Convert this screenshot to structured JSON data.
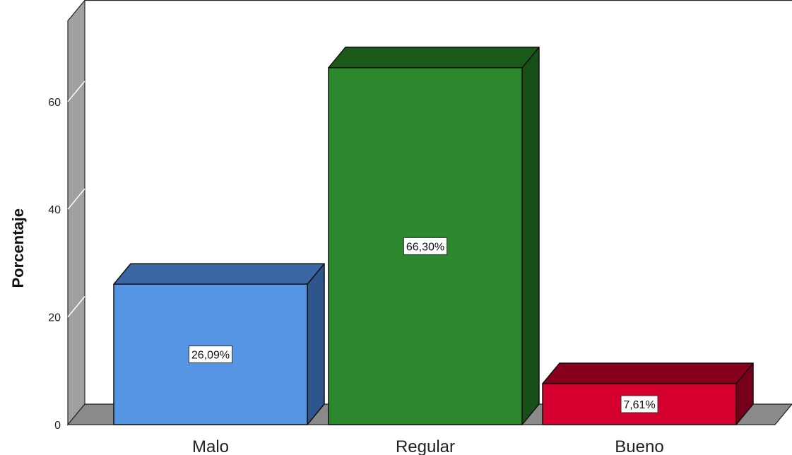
{
  "chart_data": {
    "type": "bar",
    "style": "3d",
    "title": "",
    "xlabel": "",
    "ylabel": "Porcentaje",
    "categories": [
      "Malo",
      "Regular",
      "Bueno"
    ],
    "values": [
      26.09,
      66.3,
      7.61
    ],
    "data_labels": [
      "26,09%",
      "66,30%",
      "7,61%"
    ],
    "ylim": [
      0,
      75
    ],
    "yticks": [
      0,
      20,
      40,
      60
    ],
    "ytick_labels": [
      "0",
      "20",
      "40",
      "60"
    ],
    "grid": false,
    "legend": "none",
    "colors": {
      "Malo": {
        "front": "#5595e4",
        "top": "#3a66a4",
        "side": "#2f568c"
      },
      "Regular": {
        "front": "#2c882c",
        "top": "#1c5a1c",
        "side": "#184e18"
      },
      "Bueno": {
        "front": "#d6002e",
        "top": "#87001c",
        "side": "#750018"
      },
      "wall": "#a0a0a0",
      "floor": "#8a8a8a"
    }
  }
}
